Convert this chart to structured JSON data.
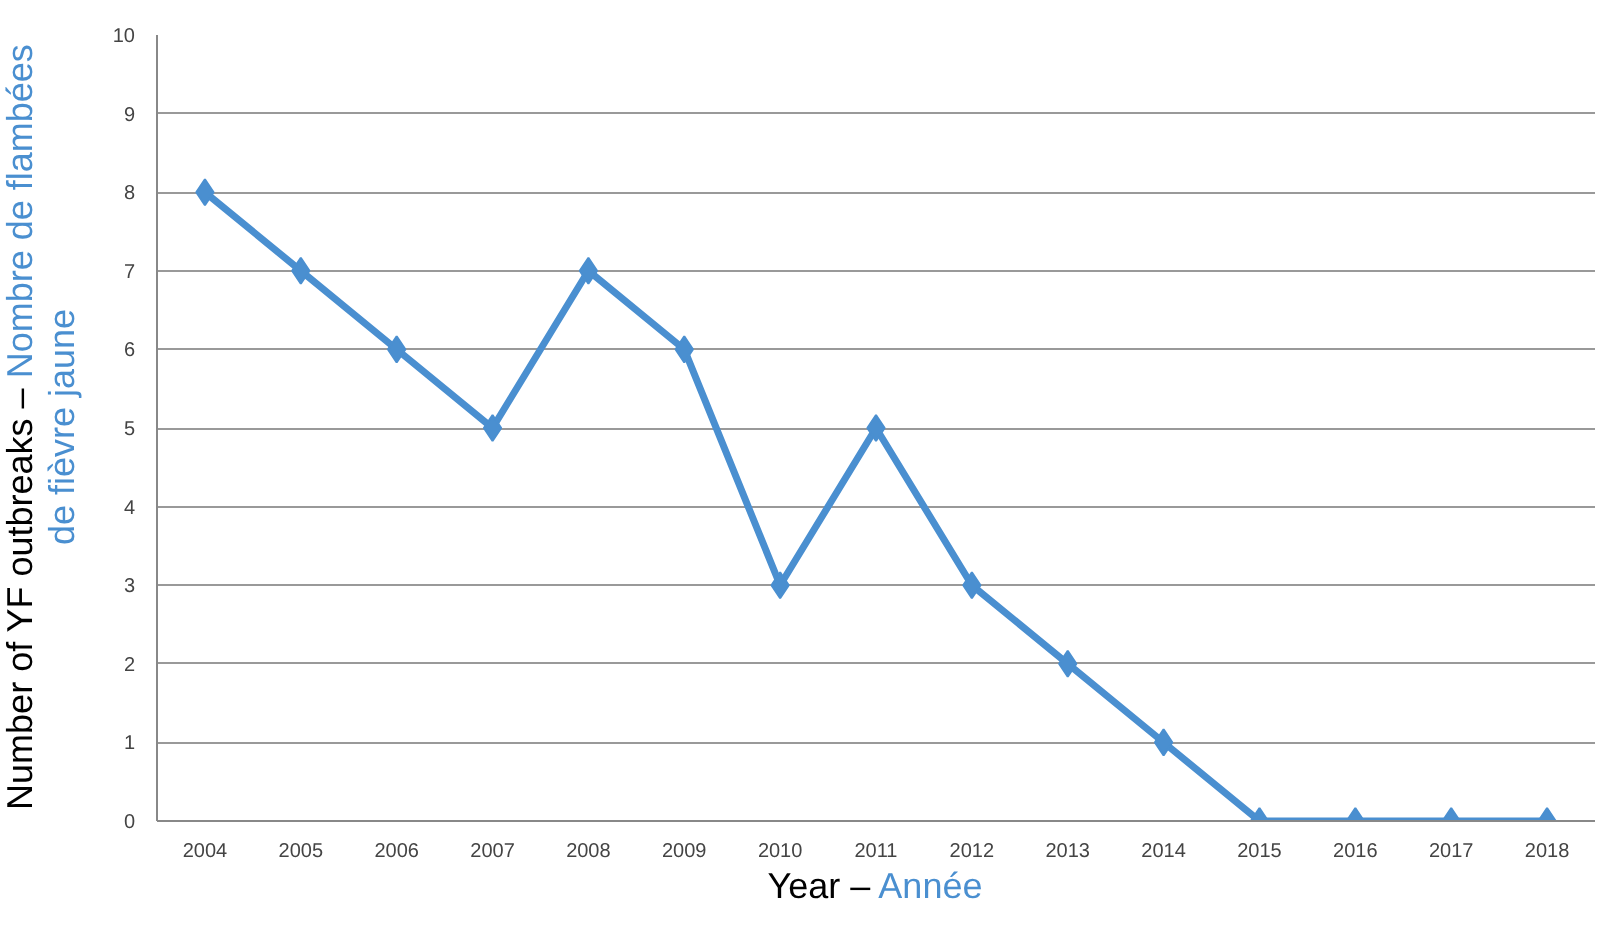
{
  "chart_data": {
    "type": "line",
    "xlabel": "Year – Année",
    "ylabel": "Number of YF outbreaks – Nombre de flambées de fièvre jaune",
    "categories": [
      "2004",
      "2005",
      "2006",
      "2007",
      "2008",
      "2009",
      "2010",
      "2011",
      "2012",
      "2013",
      "2014",
      "2015",
      "2016",
      "2017",
      "2018"
    ],
    "series": [
      {
        "color": "#4a8fd0",
        "values": [
          8,
          7,
          6,
          5,
          7,
          6,
          3,
          5,
          3,
          2,
          1,
          0,
          0,
          0,
          0
        ]
      }
    ],
    "ylim": [
      0,
      10
    ],
    "yticks": [
      0,
      1,
      2,
      3,
      4,
      5,
      6,
      7,
      8,
      9,
      10
    ],
    "grid": "y",
    "marker": "diamond",
    "line_style": "solid"
  }
}
